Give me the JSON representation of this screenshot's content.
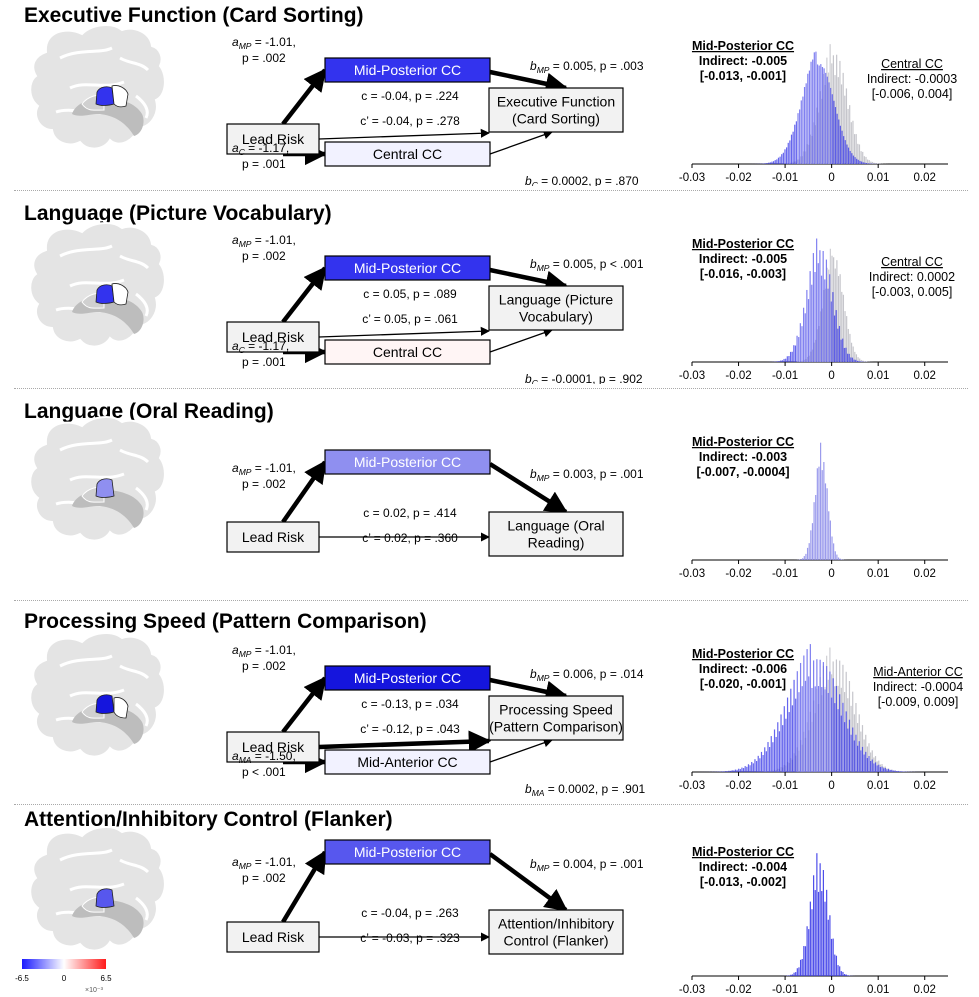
{
  "panels": [
    {
      "title": "Executive Function (Card Sorting)",
      "outcome_lines": [
        "Executive Function",
        "(Card Sorting)"
      ],
      "predictor": "Lead Risk",
      "mediator1": "Mid-Posterior CC",
      "mediator2": "Central CC",
      "a1": {
        "sub": "MP",
        "text1": " = -1.01,",
        "text2": "p = .002"
      },
      "a2": {
        "sub": "C",
        "text1": " = -1.17,",
        "text2": "p = .001"
      },
      "b1": {
        "sub": "MP",
        "text": " = 0.005, p = .003"
      },
      "b2": {
        "sub": "C",
        "text": " = 0.0002, p = .870"
      },
      "c_total": "c = -0.04, p = .224",
      "c_direct": "c’ = -0.04, p = .278",
      "ci1": {
        "name": "Mid-Posterior CC",
        "indirect": "Indirect: -0.005",
        "ci": "[-0.013, -0.001]"
      },
      "ci2": {
        "name": "Central CC",
        "indirect": "Indirect: -0.0003",
        "ci": "[-0.006, 0.004]"
      }
    },
    {
      "title": "Language (Picture Vocabulary)",
      "outcome_lines": [
        "Language (Picture",
        "Vocabulary)"
      ],
      "predictor": "Lead Risk",
      "mediator1": "Mid-Posterior CC",
      "mediator2": "Central CC",
      "a1": {
        "sub": "MP",
        "text1": " = -1.01,",
        "text2": "p = .002"
      },
      "a2": {
        "sub": "C",
        "text1": " = -1.17,",
        "text2": "p = .001"
      },
      "b1": {
        "sub": "MP",
        "text": " = 0.005, p < .001"
      },
      "b2": {
        "sub": "C",
        "text": " = -0.0001, p = .902"
      },
      "c_total": "c = 0.05, p = .089",
      "c_direct": "c’ = 0.05, p = .061",
      "ci1": {
        "name": "Mid-Posterior CC",
        "indirect": "Indirect: -0.005",
        "ci": "[-0.016, -0.003]"
      },
      "ci2": {
        "name": "Central CC",
        "indirect": "Indirect: 0.0002",
        "ci": "[-0.003, 0.005]"
      }
    },
    {
      "title": "Language (Oral Reading)",
      "outcome_lines": [
        "Language (Oral",
        "Reading)"
      ],
      "predictor": "Lead Risk",
      "mediator1": "Mid-Posterior CC",
      "a1": {
        "sub": "MP",
        "text1": " = -1.01,",
        "text2": "p = .002"
      },
      "b1": {
        "sub": "MP",
        "text": " = 0.003, p = .001"
      },
      "c_total": "c = 0.02, p = .414",
      "c_direct": "c’ = 0.02, p = .360",
      "ci1": {
        "name": "Mid-Posterior CC",
        "indirect": "Indirect: -0.003",
        "ci": "[-0.007, -0.0004]"
      }
    },
    {
      "title": "Processing Speed (Pattern Comparison)",
      "outcome_lines": [
        "Processing Speed",
        "(Pattern Comparison)"
      ],
      "predictor": "Lead Risk",
      "mediator1": "Mid-Posterior CC",
      "mediator2": "Mid-Anterior CC",
      "a1": {
        "sub": "MP",
        "text1": " = -1.01,",
        "text2": "p = .002"
      },
      "a2": {
        "sub": "MA",
        "text1": " = -1.50,",
        "text2": "p < .001"
      },
      "b1": {
        "sub": "MP",
        "text": " = 0.006, p = .014"
      },
      "b2": {
        "sub": "MA",
        "text": " = 0.0002, p = .901"
      },
      "c_total": "c = -0.13, p = .034",
      "c_direct": "c’ = -0.12, p = .043",
      "ci1": {
        "name": "Mid-Posterior CC",
        "indirect": "Indirect: -0.006",
        "ci": "[-0.020, -0.001]"
      },
      "ci2": {
        "name": "Mid-Anterior CC",
        "indirect": "Indirect: -0.0004",
        "ci": "[-0.009, 0.009]"
      }
    },
    {
      "title": "Attention/Inhibitory Control (Flanker)",
      "outcome_lines": [
        "Attention/Inhibitory",
        "Control (Flanker)"
      ],
      "predictor": "Lead Risk",
      "mediator1": "Mid-Posterior CC",
      "a1": {
        "sub": "MP",
        "text1": " = -1.01,",
        "text2": "p = .002"
      },
      "b1": {
        "sub": "MP",
        "text": " = 0.004, p = .001"
      },
      "c_total": "c = -0.04, p = .263",
      "c_direct": "c’ = -0.03, p = .323",
      "ci1": {
        "name": "Mid-Posterior CC",
        "indirect": "Indirect: -0.004",
        "ci": "[-0.013, -0.002]"
      }
    }
  ],
  "histogram_axis": {
    "ticks": [
      "-0.03",
      "-0.02",
      "-0.01",
      "0",
      "0.01",
      "0.02"
    ]
  },
  "colorbar": {
    "min": "-6.5",
    "mid": "0",
    "max": "6.5",
    "scale": "×10⁻³"
  },
  "colors": {
    "strong_blue": "#3b3bef",
    "mid_blue": "#6666f0",
    "light_blue": "#9b9bee",
    "gray": "#c8c8c8",
    "brain": "#e6e6e6"
  }
}
